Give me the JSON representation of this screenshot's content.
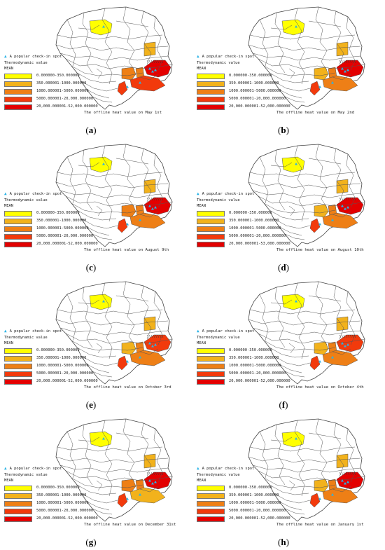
{
  "legend": {
    "spot_label": "A popular check-in spot",
    "title": "Thermodynamic value",
    "subtitle": "MEAN",
    "spot_color": "#2ab3e6"
  },
  "classes": [
    {
      "color": "#ffff00"
    },
    {
      "color": "#f2b21c"
    },
    {
      "color": "#ee7f16"
    },
    {
      "color": "#f23a0c"
    },
    {
      "color": "#e30000"
    }
  ],
  "panels": [
    {
      "letter": "a",
      "caption": "The offline heat value on May 1st",
      "class_labels": [
        "0.000000-350.000000",
        "350.000001-1000.000000",
        "1000.000001-5000.000000",
        "5000.000001-20,000.000000",
        "20,000.000001-52,000.000000"
      ],
      "heat": {
        "north": 0,
        "east": 1,
        "center": 2,
        "sw": 3,
        "se": 3,
        "coast": 4,
        "mid": 2
      }
    },
    {
      "letter": "b",
      "caption": "The offline heat value on May 2nd",
      "class_labels": [
        "0.000000-350.000000",
        "350.000001-1000.000000",
        "1000.000001-5000.000000",
        "5000.000001-20,000.000000",
        "20,000.000001-52,000.000000"
      ],
      "heat": {
        "north": 0,
        "east": 1,
        "center": 1,
        "sw": 3,
        "se": 2,
        "coast": 4,
        "mid": 2
      }
    },
    {
      "letter": "c",
      "caption": "The offline heat value on August 9th",
      "class_labels": [
        "0.000000-350.000000",
        "350.000001-1000.000000",
        "1000.000001-5000.000000",
        "5000.000001-20,000.000000",
        "20,000.000001-52,000.000000"
      ],
      "heat": {
        "north": 0,
        "east": 1,
        "center": 2,
        "sw": 3,
        "se": 2,
        "coast": 4,
        "mid": 2
      }
    },
    {
      "letter": "d",
      "caption": "The offline heat value on August 10th",
      "class_labels": [
        "0.000000-350.000000",
        "350.000001-1000.000000",
        "1000.000001-5000.000000",
        "5000.000001-20,000.000000",
        "20,000.000001-53,000.000000"
      ],
      "heat": {
        "north": 0,
        "east": 1,
        "center": 1,
        "sw": 3,
        "se": 2,
        "coast": 4,
        "mid": 2
      }
    },
    {
      "letter": "e",
      "caption": "The offline heat value on October 3rd",
      "class_labels": [
        "0.000000-350.000000",
        "350.000001-1000.000000",
        "1000.000001-5000.000000",
        "5000.000001-20,000.000000",
        "20,000.000001-52,000.000000"
      ],
      "heat": {
        "north": 0,
        "east": 1,
        "center": 1,
        "sw": 3,
        "se": 2,
        "coast": 3,
        "mid": 2
      }
    },
    {
      "letter": "f",
      "caption": "The offline heat value on October 4th",
      "class_labels": [
        "0.000000-350.000000",
        "350.000001-1000.000000",
        "1000.000001-5000.000000",
        "5000.000001-20,000.000000",
        "20,000.000001-52,000.000000"
      ],
      "heat": {
        "north": 0,
        "east": 1,
        "center": 1,
        "sw": 3,
        "se": 2,
        "coast": 3,
        "mid": 2
      }
    },
    {
      "letter": "g",
      "caption": "The offline heat value on December 31st",
      "class_labels": [
        "0.000000-350.000000",
        "350.000001-1000.000000",
        "1000.000001-5000.000000",
        "5000.000001-20,000.000000",
        "20,000.000001-52,000.000000"
      ],
      "heat": {
        "north": 0,
        "east": 1,
        "center": 2,
        "sw": 3,
        "se": 1,
        "coast": 4,
        "mid": 2
      }
    },
    {
      "letter": "h",
      "caption": "The offline heat value on January 1st",
      "class_labels": [
        "0.000000-350.000000",
        "350.000001-1000.000000",
        "1000.000001-5000.000000",
        "5000.000001-20,000.000000",
        "20,000.000001-52,000.000000"
      ],
      "heat": {
        "north": 0,
        "east": 1,
        "center": 1,
        "sw": 3,
        "se": 2,
        "coast": 4,
        "mid": 2
      }
    }
  ]
}
